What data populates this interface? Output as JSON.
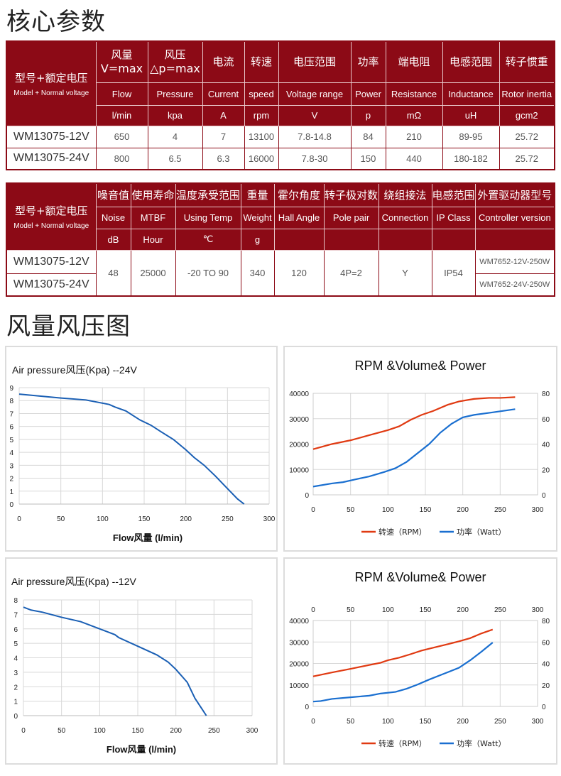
{
  "sections": {
    "core_params_title": "核心参数",
    "curves_title": "风量风压图"
  },
  "table1": {
    "model_header_cn": "型号+额定电压",
    "model_header_en": "Model + Normal voltage",
    "columns": [
      {
        "cn": "风量",
        "cn2": "V=max",
        "en": "Flow",
        "unit": "l/min"
      },
      {
        "cn": "风压",
        "cn2": "△p=max",
        "en": "Pressure",
        "unit": "kpa"
      },
      {
        "cn": "电流",
        "cn2": "",
        "en": "Current",
        "unit": "A"
      },
      {
        "cn": "转速",
        "cn2": "",
        "en": "speed",
        "unit": "rpm"
      },
      {
        "cn": "电压范围",
        "cn2": "",
        "en": "Voltage range",
        "unit": "V"
      },
      {
        "cn": "功率",
        "cn2": "",
        "en": "Power",
        "unit": "p"
      },
      {
        "cn": "端电阻",
        "cn2": "",
        "en": "Resistance",
        "unit": "mΩ"
      },
      {
        "cn": "电感范围",
        "cn2": "",
        "en": "Inductance",
        "unit": "uH"
      },
      {
        "cn": "转子惯重",
        "cn2": "",
        "en": "Rotor inertia",
        "unit": "gcm2"
      }
    ],
    "rows": [
      {
        "model": "WM13075-12V",
        "values": [
          "650",
          "4",
          "7",
          "13100",
          "7.8-14.8",
          "84",
          "210",
          "89-95",
          "25.72"
        ]
      },
      {
        "model": "WM13075-24V",
        "values": [
          "800",
          "6.5",
          "6.3",
          "16000",
          "7.8-30",
          "150",
          "440",
          "180-182",
          "25.72"
        ]
      }
    ]
  },
  "table2": {
    "model_header_cn": "型号+额定电压",
    "model_header_en": "Model + Normal voltage",
    "columns": [
      {
        "cn": "噪音值",
        "en": "Noise",
        "unit": "dB"
      },
      {
        "cn": "使用寿命",
        "en": "MTBF",
        "unit": "Hour"
      },
      {
        "cn": "温度承受范围",
        "en": "Using Temp",
        "unit": "℃"
      },
      {
        "cn": "重量",
        "en": "Weight",
        "unit": "g"
      },
      {
        "cn": "霍尔角度",
        "en": "Hall Angle",
        "unit": ""
      },
      {
        "cn": "转子极对数",
        "en": "Pole pair",
        "unit": ""
      },
      {
        "cn": "绕组接法",
        "en": "Connection",
        "unit": ""
      },
      {
        "cn": "电感范围",
        "en": "IP Class",
        "unit": ""
      },
      {
        "cn": "外置驱动器型号",
        "en": "Controller version",
        "unit": ""
      }
    ],
    "models": [
      "WM13075-12V",
      "WM13075-24V"
    ],
    "shared_values": [
      "48",
      "25000",
      "-20 TO 90",
      "340",
      "120",
      "4P=2",
      "Y",
      "IP54"
    ],
    "controllers": [
      "WM7652-12V-250W",
      "WM7652-24V-250W"
    ]
  },
  "chart_data": [
    {
      "type": "line",
      "title": "Air pressure风压(Kpa)  --24V",
      "xlabel": "Flow风量  (l/min)",
      "ylabel": "",
      "xlim": [
        0,
        300
      ],
      "ylim": [
        0,
        9
      ],
      "xticks": [
        "0",
        "50",
        "100",
        "150",
        "200",
        "250",
        "300"
      ],
      "yticks": [
        "0",
        "1",
        "2",
        "3",
        "4",
        "5",
        "6",
        "7",
        "8",
        "9"
      ],
      "grid": true,
      "series": [
        {
          "name": "Air pressure",
          "color": "#1a5fb4",
          "x": [
            0,
            25,
            50,
            80,
            108,
            115,
            128,
            145,
            158,
            170,
            185,
            200,
            210,
            222,
            235,
            250,
            262,
            270
          ],
          "y": [
            8.5,
            8.35,
            8.2,
            8.05,
            7.7,
            7.5,
            7.2,
            6.5,
            6.1,
            5.6,
            5.0,
            4.2,
            3.6,
            3.0,
            2.2,
            1.2,
            0.4,
            0
          ]
        }
      ]
    },
    {
      "type": "line",
      "title": "RPM &Volume& Power",
      "xlim": [
        0,
        300
      ],
      "ylim": [
        0,
        40000
      ],
      "y2lim": [
        0,
        80
      ],
      "xticks": [
        "0",
        "50",
        "100",
        "150",
        "200",
        "250",
        "300"
      ],
      "yticks": [
        "0",
        "10000",
        "20000",
        "30000",
        "40000"
      ],
      "y2ticks": [
        "0",
        "20",
        "40",
        "60",
        "80"
      ],
      "grid": true,
      "legend": [
        "转速（RPM）",
        "功率（Watt）"
      ],
      "legend_position": "bottom",
      "series": [
        {
          "name": "转速（RPM）",
          "axis": "left",
          "color": "#e03a12",
          "x": [
            0,
            25,
            50,
            75,
            100,
            115,
            130,
            145,
            160,
            180,
            195,
            215,
            235,
            250,
            270
          ],
          "y": [
            18000,
            20000,
            21500,
            23500,
            25500,
            27000,
            29500,
            31500,
            33000,
            35500,
            36800,
            37800,
            38200,
            38200,
            38500
          ]
        },
        {
          "name": "功率（Watt）",
          "axis": "right",
          "color": "#1a6fd0",
          "x": [
            0,
            25,
            40,
            55,
            75,
            95,
            110,
            125,
            140,
            155,
            170,
            185,
            200,
            215,
            240,
            270
          ],
          "y": [
            6.5,
            9,
            10,
            12,
            14.5,
            18,
            21,
            26,
            33,
            40,
            49,
            56,
            61,
            63,
            65,
            67.5
          ]
        }
      ]
    },
    {
      "type": "line",
      "title": "Air pressure风压(Kpa)  --12V",
      "xlabel": "Flow风量  (l/min)",
      "xlim": [
        0,
        300
      ],
      "ylim": [
        0,
        8
      ],
      "xticks": [
        "0",
        "50",
        "100",
        "150",
        "200",
        "250",
        "300"
      ],
      "yticks": [
        "0",
        "1",
        "2",
        "3",
        "4",
        "5",
        "6",
        "7",
        "8"
      ],
      "grid": true,
      "series": [
        {
          "name": "Air pressure",
          "color": "#1a5fb4",
          "x": [
            0,
            10,
            25,
            50,
            75,
            90,
            110,
            120,
            125,
            150,
            175,
            190,
            200,
            205,
            215,
            225,
            235,
            240
          ],
          "y": [
            7.5,
            7.3,
            7.15,
            6.8,
            6.5,
            6.2,
            5.8,
            5.6,
            5.4,
            4.8,
            4.2,
            3.7,
            3.2,
            2.9,
            2.3,
            1.2,
            0.4,
            0
          ]
        }
      ]
    },
    {
      "type": "line",
      "title": "RPM &Volume& Power",
      "xlim": [
        0,
        300
      ],
      "ylim": [
        0,
        40000
      ],
      "y2lim": [
        0,
        80
      ],
      "xticks": [
        "0",
        "50",
        "100",
        "150",
        "200",
        "250",
        "300"
      ],
      "yticks": [
        "0",
        "10000",
        "20000",
        "30000",
        "40000"
      ],
      "y2ticks": [
        "0",
        "20",
        "40",
        "60",
        "80"
      ],
      "grid": true,
      "secondary_x_axis_top": true,
      "legend": [
        "转速（RPM）",
        "功率（Watt）"
      ],
      "legend_position": "bottom",
      "series": [
        {
          "name": "转速（RPM）",
          "axis": "left",
          "color": "#e03a12",
          "x": [
            0,
            25,
            50,
            75,
            90,
            100,
            115,
            130,
            145,
            160,
            180,
            195,
            210,
            225,
            240
          ],
          "y": [
            14000,
            15800,
            17500,
            19300,
            20300,
            21500,
            22700,
            24300,
            26000,
            27300,
            29000,
            30300,
            31800,
            34000,
            35800
          ]
        },
        {
          "name": "功率（Watt）",
          "axis": "right",
          "color": "#1a6fd0",
          "x": [
            0,
            10,
            25,
            50,
            75,
            90,
            110,
            125,
            140,
            155,
            175,
            195,
            210,
            225,
            240
          ],
          "y": [
            4.5,
            5,
            7,
            8.5,
            10,
            12,
            13.5,
            16.5,
            20.5,
            25,
            30.5,
            36,
            43,
            51,
            59.5
          ]
        }
      ]
    }
  ]
}
